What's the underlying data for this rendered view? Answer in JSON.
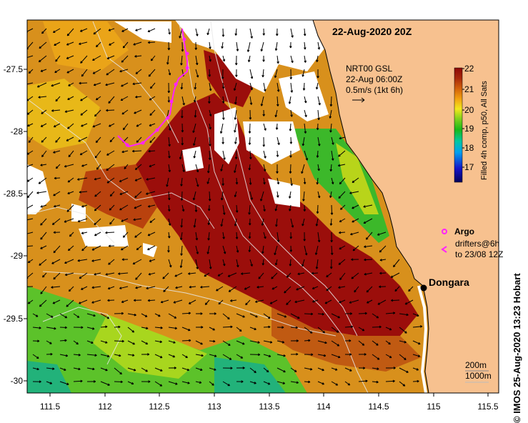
{
  "map": {
    "title": "22-Aug-2020 20Z",
    "credit": "© IMOS 25-Aug-2020 13:23 Hobart",
    "x_ticks": [
      "111.5",
      "112",
      "112.5",
      "113",
      "113.5",
      "114",
      "114.5",
      "115",
      "115.5"
    ],
    "y_ticks": [
      "-27.5",
      "-28",
      "-28.5",
      "-29",
      "-29.5",
      "-30"
    ],
    "lon_range": [
      111.3,
      115.6
    ],
    "lat_range": [
      -30.1,
      -27.05
    ],
    "current_label": {
      "line1": "NRT00 GSL",
      "line2": "22-Aug 06:00Z",
      "line3": "0.5m/s (1kt 6h)"
    },
    "colorbar": {
      "title": "Filled 4h comp, p50, All Sats",
      "ticks": [
        "22",
        "21",
        "20",
        "19",
        "18",
        "17"
      ],
      "min": 16.5,
      "max": 22
    },
    "legend": {
      "argo": "Argo",
      "drifters_line1": "drifters@6h",
      "drifters_line2": "to 23/08 12Z"
    },
    "location": {
      "name": "Dongara",
      "lon": 114.93,
      "lat": -29.25
    },
    "contour_labels": {
      "a": "200m",
      "b": "1000m"
    },
    "colors": {
      "land": "#f7c18f",
      "cloud": "#ffffff",
      "argo": "#ff22ff",
      "warm": "#9b0e0b"
    }
  }
}
